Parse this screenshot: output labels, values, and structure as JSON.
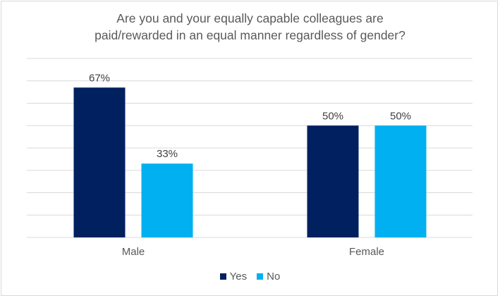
{
  "chart_data": {
    "type": "bar",
    "title_line1": "Are you and your equally capable colleagues are",
    "title_line2": "paid/rewarded in an equal manner regardless of gender?",
    "categories": [
      "Male",
      "Female"
    ],
    "series": [
      {
        "name": "Yes",
        "values": [
          67,
          50
        ],
        "labels": [
          "67%",
          "50%"
        ],
        "color": "#002060"
      },
      {
        "name": "No",
        "values": [
          33,
          50
        ],
        "labels": [
          "33%",
          "50%"
        ],
        "color": "#00B0F0"
      }
    ],
    "ylim": [
      0,
      80
    ],
    "grid_step": 10,
    "grid": true,
    "legend": "bottom",
    "xlabel": "",
    "ylabel": ""
  }
}
